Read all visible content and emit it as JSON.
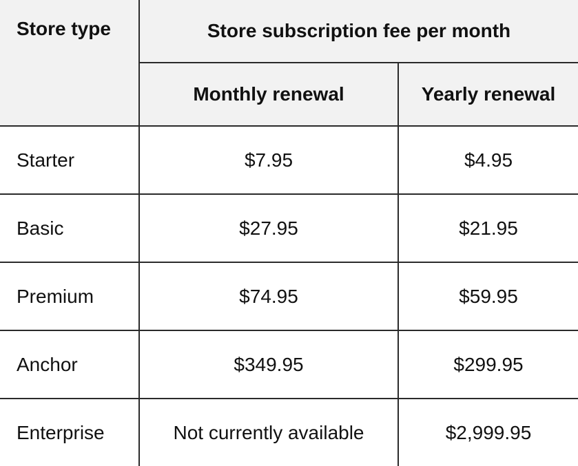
{
  "table": {
    "header": {
      "store_type": "Store type",
      "fee_group": "Store subscription fee per month",
      "monthly": "Monthly renewal",
      "yearly": "Yearly renewal"
    },
    "rows": [
      {
        "type": "Starter",
        "monthly": "$7.95",
        "yearly": "$4.95"
      },
      {
        "type": "Basic",
        "monthly": "$27.95",
        "yearly": "$21.95"
      },
      {
        "type": "Premium",
        "monthly": "$74.95",
        "yearly": "$59.95"
      },
      {
        "type": "Anchor",
        "monthly": "$349.95",
        "yearly": "$299.95"
      },
      {
        "type": "Enterprise",
        "monthly": "Not currently available",
        "yearly": "$2,999.95"
      }
    ]
  }
}
